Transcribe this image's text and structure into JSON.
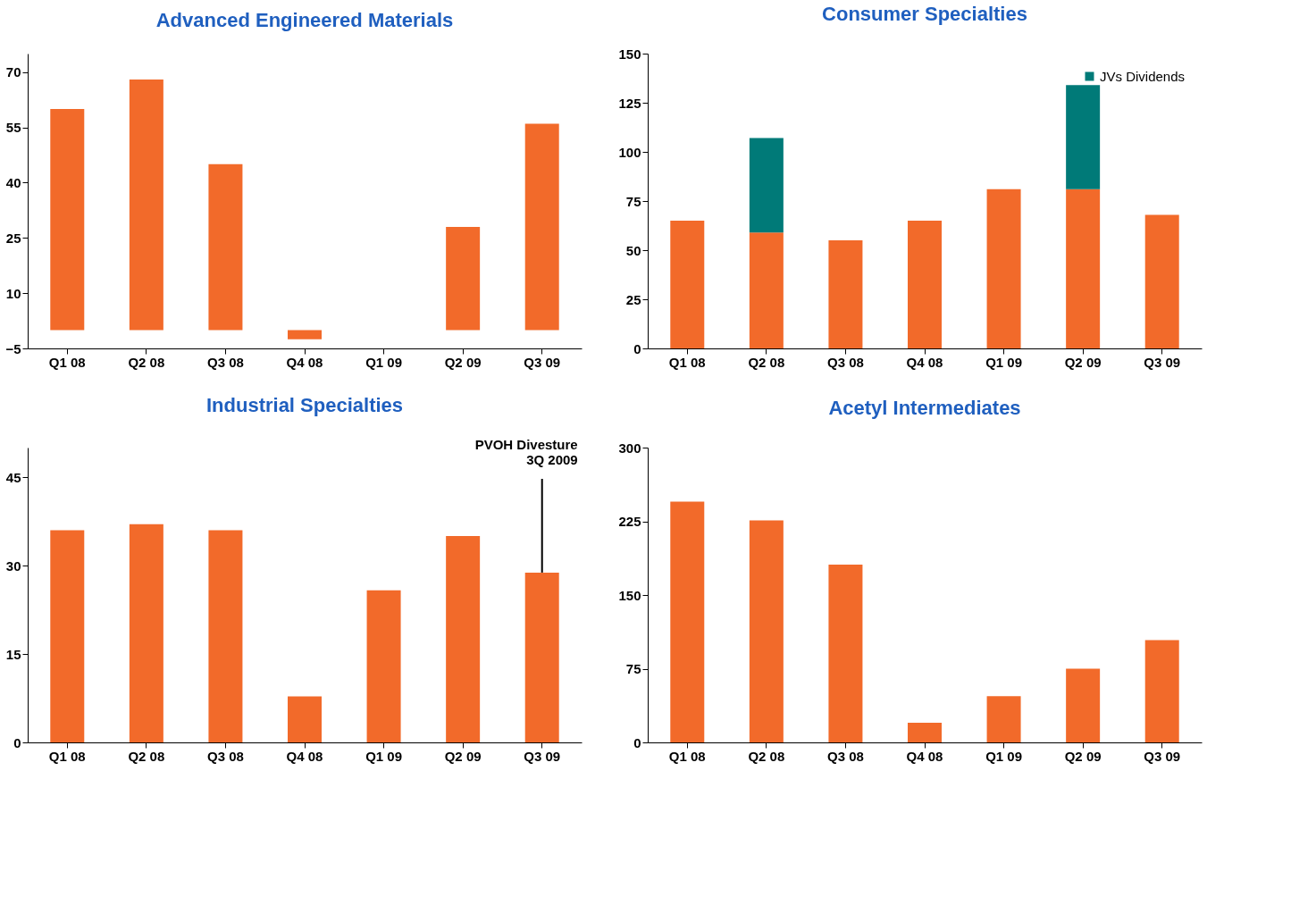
{
  "chart_data": [
    {
      "type": "bar",
      "title": "Advanced Engineered Materials",
      "categories": [
        "Q1 08",
        "Q2 08",
        "Q3 08",
        "Q4 08",
        "Q1 09",
        "Q2 09",
        "Q3 09"
      ],
      "series": [
        {
          "color": "#f26a2a",
          "values": [
            60,
            68,
            45,
            -2.5,
            0,
            28,
            56
          ]
        }
      ],
      "ylim": [
        -5,
        75
      ],
      "yticks": [
        -5,
        10,
        25,
        40,
        55,
        70
      ],
      "grid": false
    },
    {
      "type": "bar",
      "title": "Consumer Specialties",
      "categories": [
        "Q1 08",
        "Q2 08",
        "Q3 08",
        "Q4 08",
        "Q1 09",
        "Q2 09",
        "Q3 09"
      ],
      "stacked": true,
      "series": [
        {
          "color": "#f26a2a",
          "values": [
            65,
            59,
            55,
            65,
            81,
            81,
            68
          ]
        },
        {
          "name": "JVs Dividends",
          "color": "#007a78",
          "values": [
            null,
            48,
            null,
            null,
            null,
            53,
            null
          ]
        }
      ],
      "ylim": [
        0,
        150
      ],
      "yticks": [
        0,
        25,
        50,
        75,
        100,
        125,
        150
      ],
      "grid": false,
      "legend": "top right"
    },
    {
      "type": "bar",
      "title": "Industrial Specialties",
      "categories": [
        "Q1 08",
        "Q2 08",
        "Q3 08",
        "Q4 08",
        "Q1 09",
        "Q2 09",
        "Q3 09"
      ],
      "series": [
        {
          "color": "#f26a2a",
          "values": [
            36,
            37,
            36,
            7.8,
            25.8,
            35,
            28.8
          ]
        }
      ],
      "ylim": [
        0,
        50
      ],
      "yticks": [
        0,
        15,
        30,
        45
      ],
      "grid": false,
      "annotations": [
        {
          "text": "PVOH Divesture\n3Q 2009",
          "x": "Q3 09",
          "y": 28.8
        }
      ]
    },
    {
      "type": "bar",
      "title": "Acetyl Intermediates",
      "categories": [
        "Q1 08",
        "Q2 08",
        "Q3 08",
        "Q4 08",
        "Q1 09",
        "Q2 09",
        "Q3 09"
      ],
      "series": [
        {
          "color": "#f26a2a",
          "values": [
            245,
            226,
            181,
            20,
            47,
            75,
            104
          ]
        }
      ],
      "ylim": [
        0,
        300
      ],
      "yticks": [
        0,
        75,
        150,
        225,
        300
      ],
      "grid": false
    }
  ]
}
